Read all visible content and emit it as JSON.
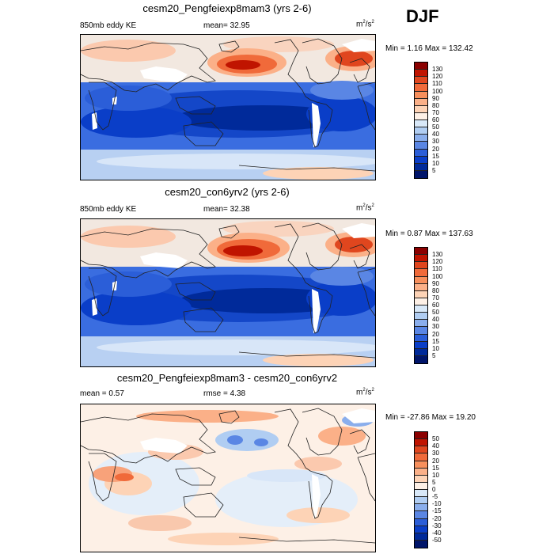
{
  "season": "DJF",
  "panels": [
    {
      "title": "cesm20_Pengfeiexp8mam3 (yrs 2-6)",
      "left_label": "850mb eddy KE",
      "center_label": "mean=  32.95",
      "units_base": "m",
      "units_sup": "2",
      "units_mid": "/s",
      "units_sup2": "2",
      "minmax": "Min =   1.16 Max = 132.42",
      "levels": [
        "130",
        "120",
        "110",
        "100",
        "90",
        "80",
        "70",
        "60",
        "50",
        "40",
        "30",
        "20",
        "15",
        "10",
        "5"
      ],
      "colors": [
        "#8b0000",
        "#c01400",
        "#e0461e",
        "#f06a3a",
        "#f78f5c",
        "#fbb088",
        "#fdd3b6",
        "#fdf0e6",
        "#d8e8f8",
        "#b0cdf2",
        "#8aaeec",
        "#5a86e4",
        "#2b5ed8",
        "#0a3ec8",
        "#002a9a",
        "#00156a"
      ]
    },
    {
      "title": "cesm20_con6yrv2 (yrs 2-6)",
      "left_label": "850mb eddy KE",
      "center_label": "mean=  32.38",
      "units_base": "m",
      "units_sup": "2",
      "units_mid": "/s",
      "units_sup2": "2",
      "minmax": "Min =   0.87 Max = 137.63",
      "levels": [
        "130",
        "120",
        "110",
        "100",
        "90",
        "80",
        "70",
        "60",
        "50",
        "40",
        "30",
        "20",
        "15",
        "10",
        "5"
      ],
      "colors": [
        "#8b0000",
        "#c01400",
        "#e0461e",
        "#f06a3a",
        "#f78f5c",
        "#fbb088",
        "#fdd3b6",
        "#fdf0e6",
        "#d8e8f8",
        "#b0cdf2",
        "#8aaeec",
        "#5a86e4",
        "#2b5ed8",
        "#0a3ec8",
        "#002a9a",
        "#00156a"
      ]
    },
    {
      "title": "cesm20_Pengfeiexp8mam3 - cesm20_con6yrv2",
      "left_label": "mean =   0.57",
      "center_label": "rmse =   4.38",
      "units_base": "m",
      "units_sup": "2",
      "units_mid": "/s",
      "units_sup2": "2",
      "minmax": "Min = -27.86 Max =  19.20",
      "levels": [
        "50",
        "40",
        "30",
        "20",
        "15",
        "10",
        "5",
        "0",
        "-5",
        "-10",
        "-15",
        "-20",
        "-30",
        "-40",
        "-50"
      ],
      "colors": [
        "#8b0000",
        "#c01400",
        "#e0461e",
        "#f06a3a",
        "#f78f5c",
        "#fbb088",
        "#fdd3b6",
        "#fdf0e6",
        "#d8e8f8",
        "#b0cdf2",
        "#8aaeec",
        "#5a86e4",
        "#2b5ed8",
        "#0a3ec8",
        "#002a9a",
        "#00156a"
      ]
    }
  ]
}
